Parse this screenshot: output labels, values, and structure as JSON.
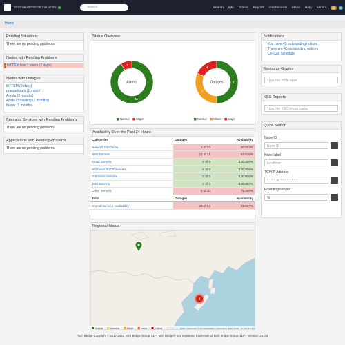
{
  "navbar": {
    "timestamp": "2022-06-08T05:05:24+00:00",
    "search_placeholder": "Search...",
    "links": [
      "Search",
      "Info",
      "Status",
      "Reports",
      "Dashboards",
      "Maps",
      "Help",
      "admin"
    ],
    "badges": [
      {
        "text": "45",
        "color": "#f0a020"
      },
      {
        "text": "0",
        "color": "#3aa6b9"
      }
    ]
  },
  "breadcrumb": "Home",
  "left_panels": [
    {
      "title": "Pending Situations",
      "items": [
        "There are no pending problems."
      ]
    },
    {
      "title": "Nodes with Pending Problems",
      "items": [
        "tbTTSM has 1 alarm (2 days)"
      ],
      "highlight": "#f6c9c4"
    },
    {
      "title": "Nodes with Outages",
      "items": [
        "tbTTSM (2 days)",
        "orangeforum (1 month)",
        "Arvola (2 months)",
        "Apelo consulting (2 months)",
        "tbonis (3 months)"
      ]
    },
    {
      "title": "Business Services with Pending Problems",
      "items": [
        "There are no pending problems."
      ]
    },
    {
      "title": "Applications with Pending Problems",
      "items": [
        "There are no pending problems."
      ]
    }
  ],
  "status_overview": {
    "title": "Status Overview",
    "charts": [
      {
        "label": "Alarms",
        "segments": [
          {
            "name": "Normal",
            "color": "#2d7d1f",
            "value": 11
          },
          {
            "name": "Major",
            "color": "#e0201b",
            "value": 1
          }
        ]
      },
      {
        "label": "Outages",
        "segments": [
          {
            "name": "Normal",
            "color": "#2d7d1f",
            "value": 11
          },
          {
            "name": "Minor",
            "color": "#f0a020",
            "value": 7
          },
          {
            "name": "Major",
            "color": "#e0201b",
            "value": 4
          }
        ]
      }
    ]
  },
  "availability": {
    "title": "Availability Over the Past 24 Hours",
    "columns": [
      "Categories",
      "Outages",
      "Availability"
    ],
    "rows": [
      {
        "category": "Network Interfaces",
        "outages": "7 of 24",
        "availability": "70.833%",
        "color": "#f4c2c2"
      },
      {
        "category": "Web Servers",
        "outages": "11 of 31",
        "availability": "64.516%",
        "color": "#f4c2c2"
      },
      {
        "category": "Email Servers",
        "outages": "0 of 0",
        "availability": "100.000%",
        "color": "#cfe3c3"
      },
      {
        "category": "DNS and DHCP Servers",
        "outages": "0 of 0",
        "availability": "100.000%",
        "color": "#cfe3c3"
      },
      {
        "category": "Database Servers",
        "outages": "0 of 0",
        "availability": "100.000%",
        "color": "#cfe3c3"
      },
      {
        "category": "JMX Servers",
        "outages": "0 of 0",
        "availability": "100.000%",
        "color": "#cfe3c3"
      },
      {
        "category": "Other Servers",
        "outages": "5 of 20",
        "availability": "75.000%",
        "color": "#f4c2c2"
      }
    ],
    "total_columns": [
      "Total",
      "Outages",
      "Availability"
    ],
    "total_row": {
      "category": "Overall Service Availability",
      "outages": "26 of 84",
      "availability": "69.047%",
      "color": "#f4c2c2"
    }
  },
  "regional_status": {
    "title": "Regional Status",
    "markers": [
      {
        "color": "#2d7d1f"
      },
      {
        "color": "#d0201b",
        "label": "3"
      }
    ],
    "legend": [
      {
        "name": "Normal",
        "color": "#2d7d1f"
      },
      {
        "name": "Warning",
        "color": "#e8d13a"
      },
      {
        "name": "Minor",
        "color": "#f0a020"
      },
      {
        "name": "Major",
        "color": "#e0601b"
      },
      {
        "name": "Critical",
        "color": "#c0101b"
      }
    ],
    "attribution": "Leaflet | Map data © OpenStreetMap contributors under ODbL, CC-BY-SA 2.0"
  },
  "notifications": {
    "title": "Notifications",
    "items": [
      "You have 45 outstanding notices",
      "There are 45 outstanding notices",
      "On-Call Schedule"
    ]
  },
  "resource_graphs": {
    "title": "Resource Graphs",
    "placeholder": "Type the node label"
  },
  "ksc_reports": {
    "title": "KSC Reports",
    "placeholder": "Type the KSC report name"
  },
  "quick_search": {
    "title": "Quick Search",
    "fields": [
      {
        "label": "Node ID",
        "placeholder": "Node ID"
      },
      {
        "label": "Node label",
        "placeholder": "localhost"
      },
      {
        "label": "TCP/IP Address",
        "placeholder": "*.*.*.* or *:*:*:*:*:*:*:*"
      },
      {
        "label": "Providing service",
        "placeholder": "%"
      }
    ]
  },
  "footer": "Tech Bridge Copyright © 2017-2021 Tech Bridge Group, LLP. Tech Bridge® is a registered trademark of Tech Bridge Group, LLP. - Version: 28.0.2"
}
